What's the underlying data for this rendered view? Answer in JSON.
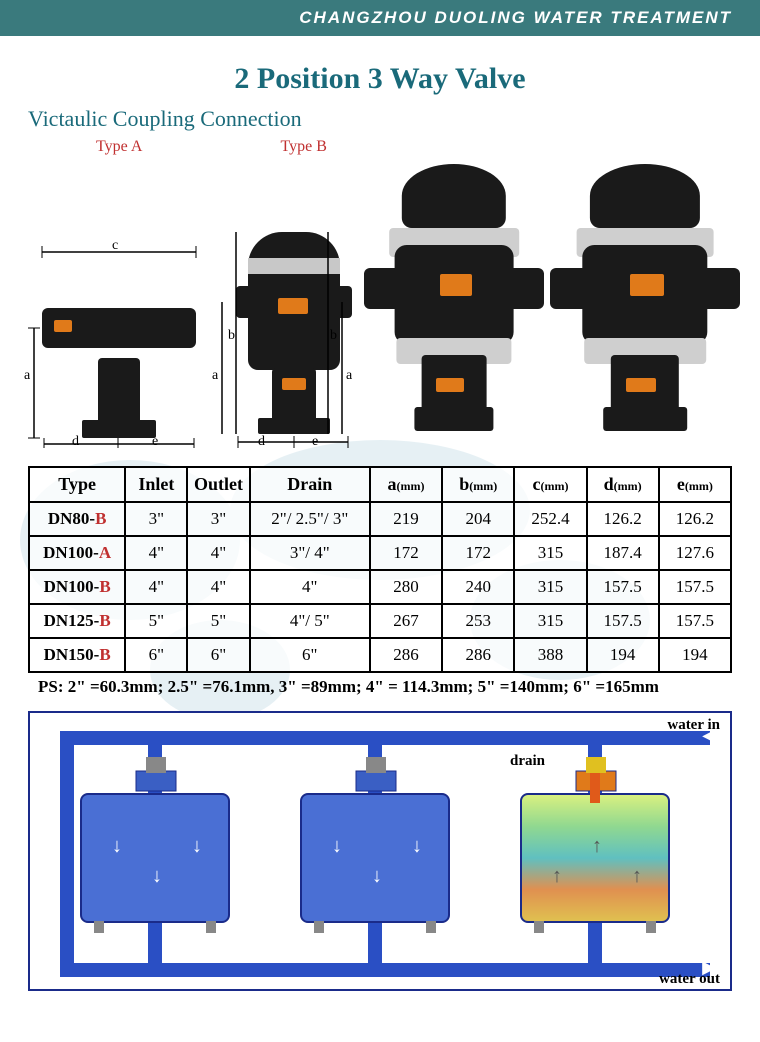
{
  "header": {
    "company": "CHANGZHOU DUOLING WATER TREATMENT"
  },
  "title": "2 Position 3 Way Valve",
  "subtitle": "Victaulic Coupling Connection",
  "type_labels": {
    "a": "Type A",
    "b": "Type B"
  },
  "dims": {
    "a": "a",
    "b": "b",
    "c": "c",
    "d": "d",
    "e": "e"
  },
  "table": {
    "headers": {
      "type": "Type",
      "inlet": "Inlet",
      "outlet": "Outlet",
      "drain": "Drain",
      "a": "a",
      "b": "b",
      "c": "c",
      "d": "d",
      "e": "e",
      "unit": "(mm)"
    },
    "rows": [
      {
        "type_pre": "DN80-",
        "type_suf": "B",
        "inlet": "3\"",
        "outlet": "3\"",
        "drain": "2\"/ 2.5\"/ 3\"",
        "a": "219",
        "b": "204",
        "c": "252.4",
        "d": "126.2",
        "e": "126.2"
      },
      {
        "type_pre": "DN100-",
        "type_suf": "A",
        "inlet": "4\"",
        "outlet": "4\"",
        "drain": "3\"/ 4\"",
        "a": "172",
        "b": "172",
        "c": "315",
        "d": "187.4",
        "e": "127.6"
      },
      {
        "type_pre": "DN100-",
        "type_suf": "B",
        "inlet": "4\"",
        "outlet": "4\"",
        "drain": "4\"",
        "a": "280",
        "b": "240",
        "c": "315",
        "d": "157.5",
        "e": "157.5"
      },
      {
        "type_pre": "DN125-",
        "type_suf": "B",
        "inlet": "5\"",
        "outlet": "5\"",
        "drain": "4\"/ 5\"",
        "a": "267",
        "b": "253",
        "c": "315",
        "d": "157.5",
        "e": "157.5"
      },
      {
        "type_pre": "DN150-",
        "type_suf": "B",
        "inlet": "6\"",
        "outlet": "6\"",
        "drain": "6\"",
        "a": "286",
        "b": "286",
        "c": "388",
        "d": "194",
        "e": "194"
      }
    ]
  },
  "ps_note": "PS: 2\" =60.3mm; 2.5\" =76.1mm, 3\" =89mm; 4\" = 114.3mm; 5\" =140mm; 6\" =165mm",
  "flow": {
    "water_in": "water in",
    "water_out": "water out",
    "drain": "drain"
  },
  "colors": {
    "header_bg": "#3a7a7d",
    "title": "#1a6a7a",
    "type_label": "#c03030",
    "border": "#000000",
    "pipe": "#2a4fc4",
    "diagram_border": "#1a2b8a",
    "drain_pipe": "#e05a1a",
    "tank": "#4a6fd4"
  }
}
